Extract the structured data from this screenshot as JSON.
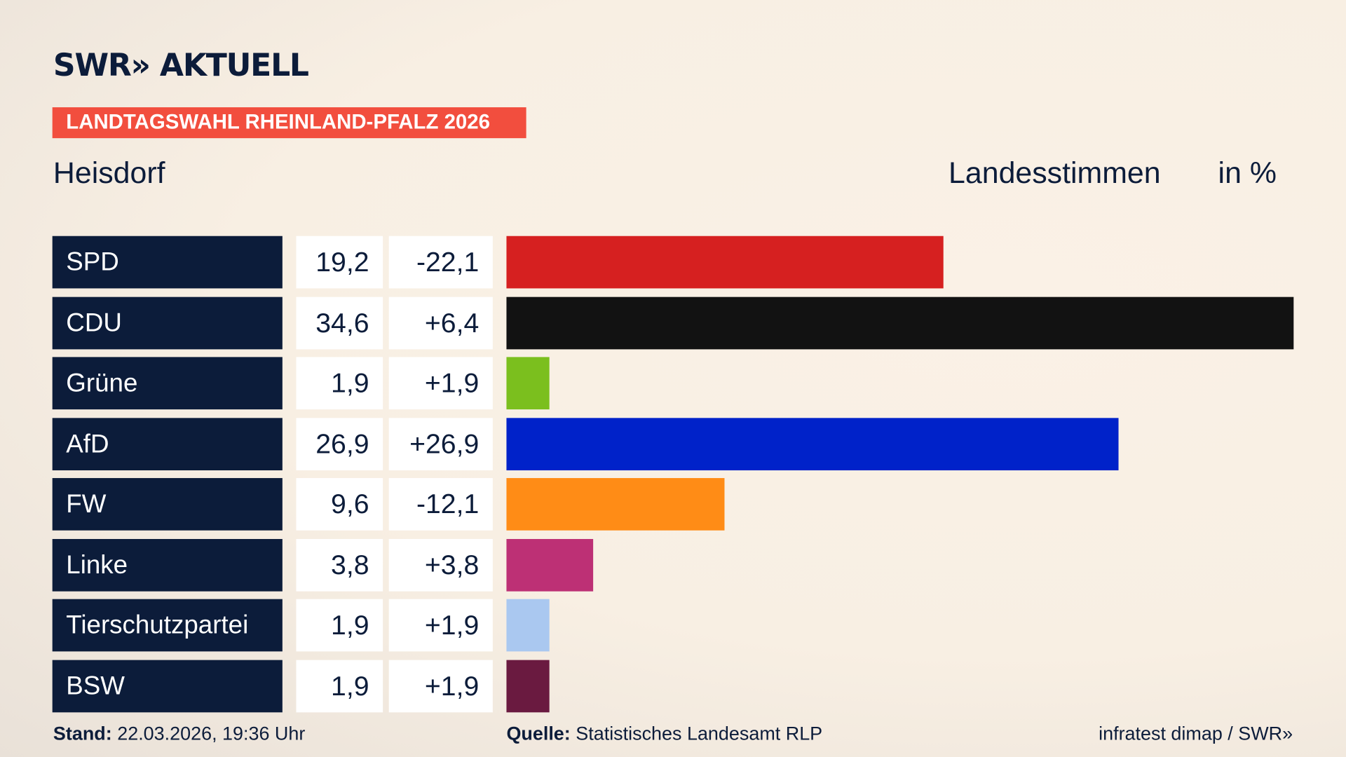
{
  "header": {
    "logo": "SWR» AKTUELL",
    "tag": "LANDTAGSWAHL RHEINLAND-PFALZ 2026",
    "location": "Heisdorf",
    "kind": "Landesstimmen",
    "unit": "in %"
  },
  "chart_data": {
    "type": "bar",
    "orientation": "horizontal",
    "xlim": [
      0,
      34.6
    ],
    "grid": false,
    "categories": [
      "SPD",
      "CDU",
      "Grüne",
      "AfD",
      "FW",
      "Linke",
      "Tierschutzpartei",
      "BSW"
    ],
    "values": [
      "19,2",
      "34,6",
      "1,9",
      "26,9",
      "9,6",
      "3,8",
      "1,9",
      "1,9"
    ],
    "numeric": [
      19.2,
      34.6,
      1.9,
      26.9,
      9.6,
      3.8,
      1.9,
      1.9
    ],
    "diffs": [
      "-22,1",
      "+6,4",
      "+1,9",
      "+26,9",
      "-12,1",
      "+3,8",
      "+1,9",
      "+1,9"
    ],
    "colors": [
      "#d62020",
      "#121212",
      "#7bbf1e",
      "#0022c9",
      "#ff8c16",
      "#bd3075",
      "#aac8f0",
      "#6a1a40"
    ]
  },
  "footer": {
    "stand_label": "Stand:",
    "stand": "22.03.2026, 19:36 Uhr",
    "source_label": "Quelle:",
    "source": "Statistisches Landesamt RLP",
    "credit": "infratest dimap / SWR»"
  }
}
